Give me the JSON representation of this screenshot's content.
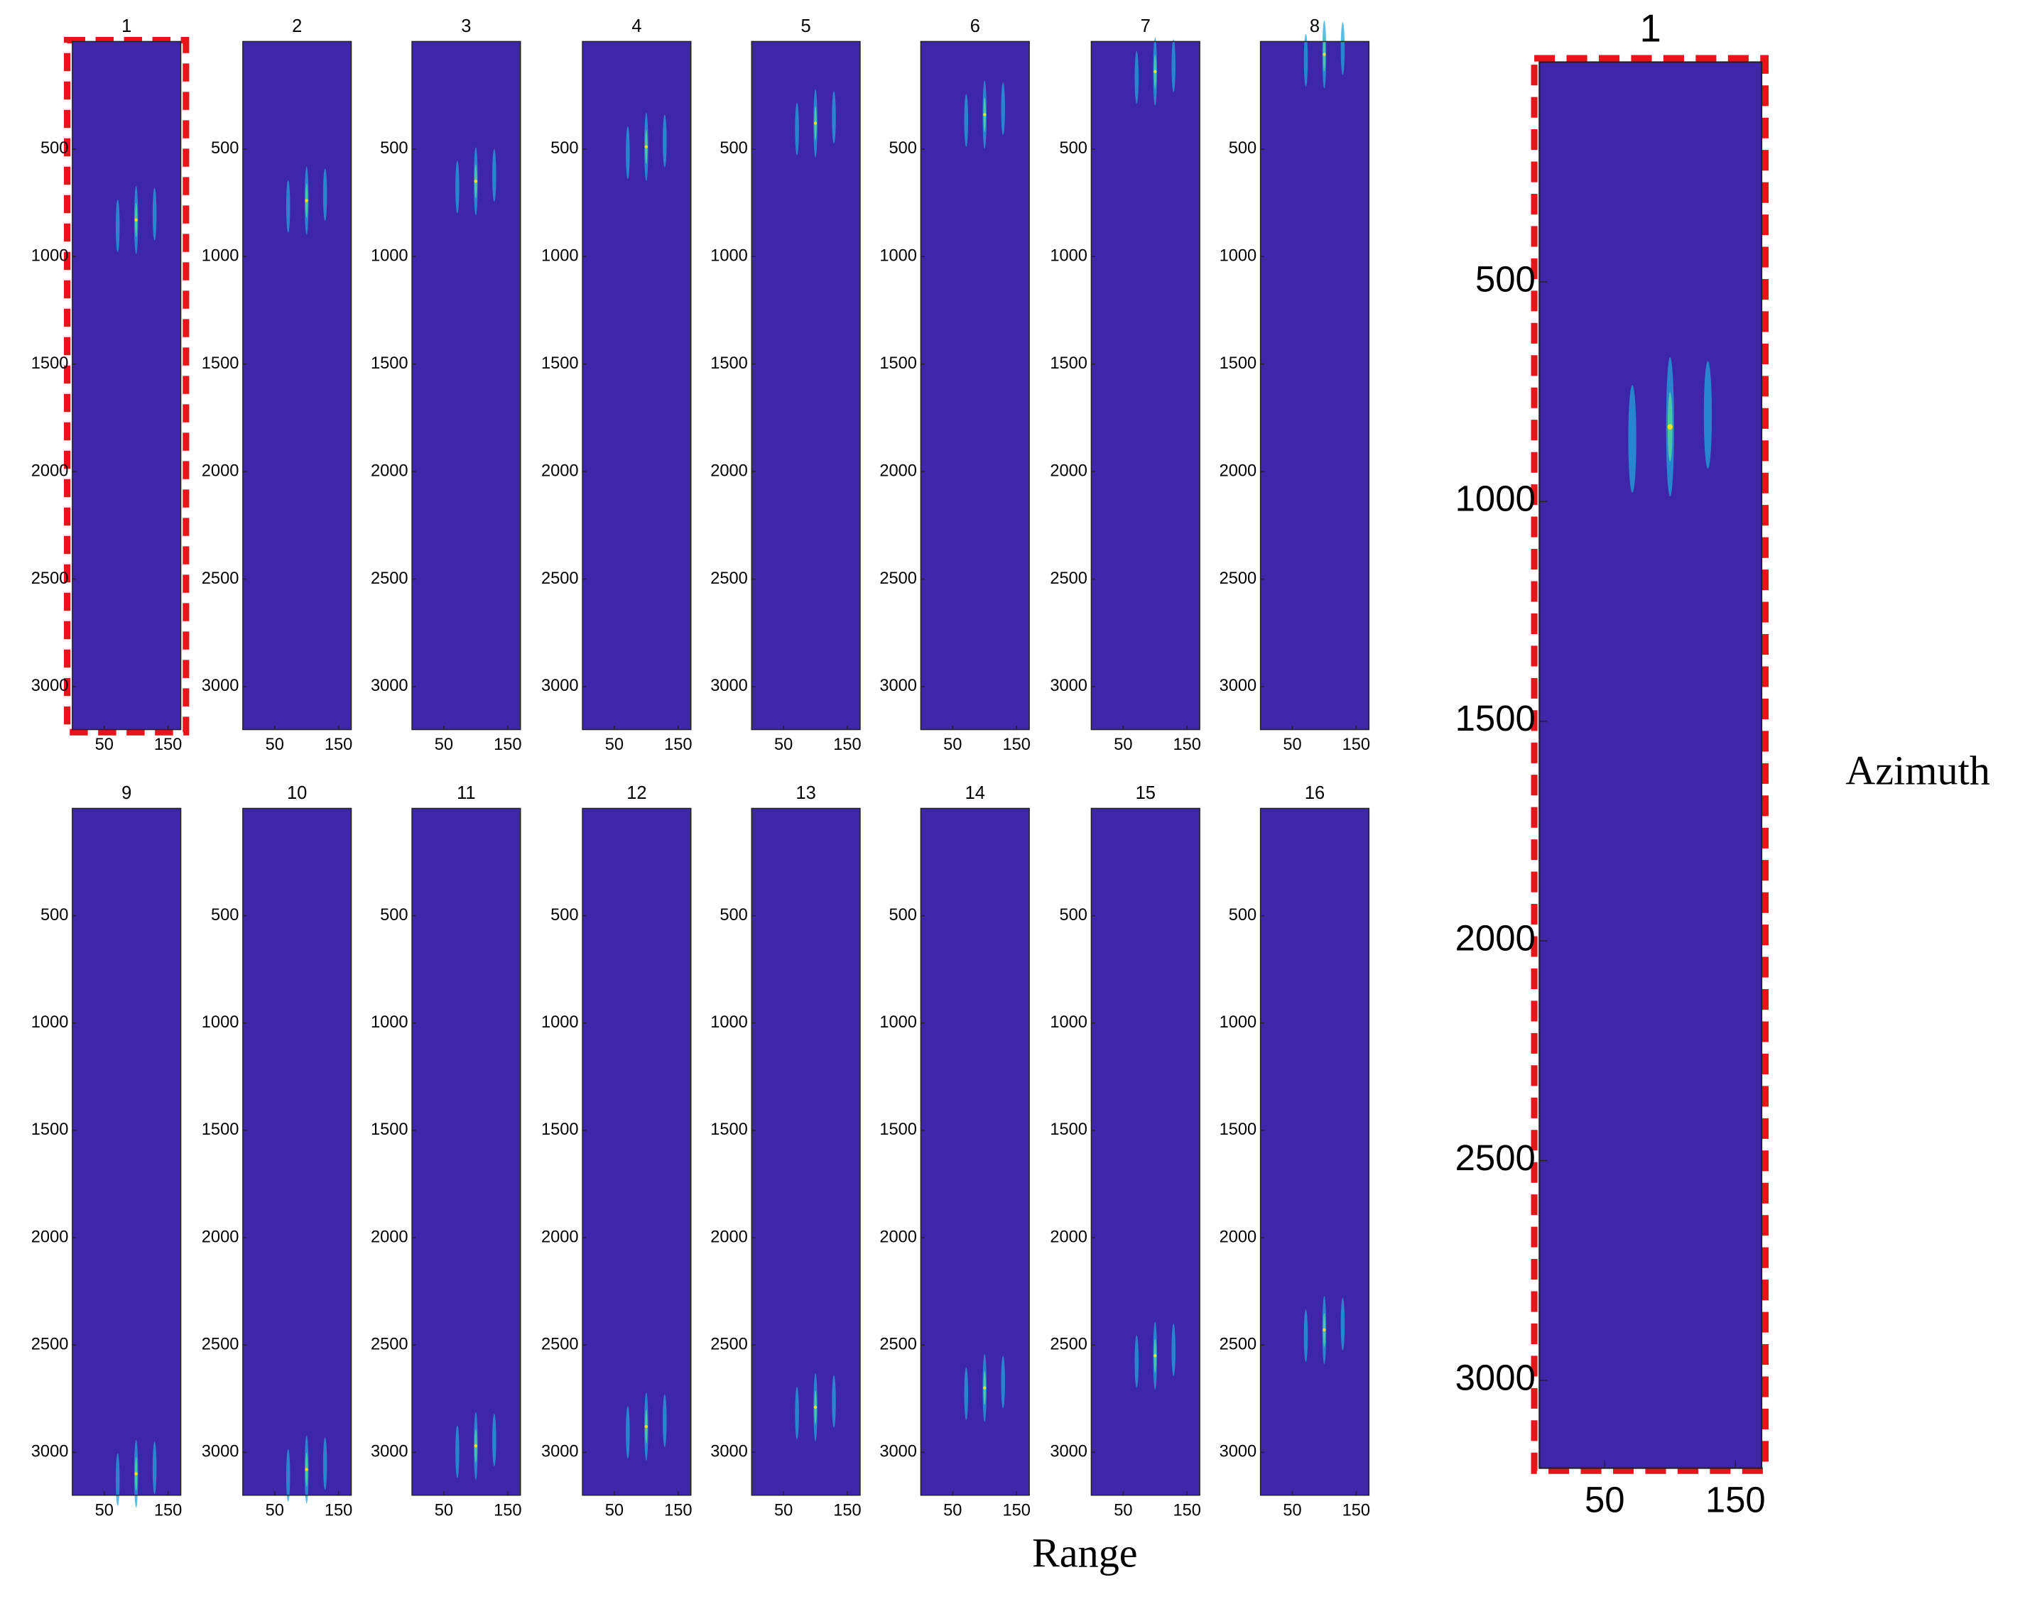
{
  "x_label": "Range",
  "y_label": "Azimuth",
  "chart_data": [
    {
      "type": "image",
      "title": "1",
      "color": "#3e26a8",
      "xlim": [
        0,
        170
      ],
      "ylim": [
        0,
        3200
      ],
      "y_reversed": true,
      "xticks": [
        50,
        150
      ],
      "yticks": [
        500,
        1000,
        1500,
        2000,
        2500,
        3000
      ],
      "peak_x": 100,
      "peak_y": 830
    },
    {
      "type": "image",
      "title": "2",
      "color": "#3e26a8",
      "xlim": [
        0,
        170
      ],
      "ylim": [
        0,
        3200
      ],
      "y_reversed": true,
      "xticks": [
        50,
        150
      ],
      "yticks": [
        500,
        1000,
        1500,
        2000,
        2500,
        3000
      ],
      "peak_x": 100,
      "peak_y": 740
    },
    {
      "type": "image",
      "title": "3",
      "color": "#3e26a8",
      "xlim": [
        0,
        170
      ],
      "ylim": [
        0,
        3200
      ],
      "y_reversed": true,
      "xticks": [
        50,
        150
      ],
      "yticks": [
        500,
        1000,
        1500,
        2000,
        2500,
        3000
      ],
      "peak_x": 100,
      "peak_y": 650
    },
    {
      "type": "image",
      "title": "4",
      "color": "#3e26a8",
      "xlim": [
        0,
        170
      ],
      "ylim": [
        0,
        3200
      ],
      "y_reversed": true,
      "xticks": [
        50,
        150
      ],
      "yticks": [
        500,
        1000,
        1500,
        2000,
        2500,
        3000
      ],
      "peak_x": 100,
      "peak_y": 490
    },
    {
      "type": "image",
      "title": "5",
      "color": "#3e26a8",
      "xlim": [
        0,
        170
      ],
      "ylim": [
        0,
        3200
      ],
      "y_reversed": true,
      "xticks": [
        50,
        150
      ],
      "yticks": [
        500,
        1000,
        1500,
        2000,
        2500,
        3000
      ],
      "peak_x": 100,
      "peak_y": 380
    },
    {
      "type": "image",
      "title": "6",
      "color": "#3e26a8",
      "xlim": [
        0,
        170
      ],
      "ylim": [
        0,
        3200
      ],
      "y_reversed": true,
      "xticks": [
        50,
        150
      ],
      "yticks": [
        500,
        1000,
        1500,
        2000,
        2500,
        3000
      ],
      "peak_x": 100,
      "peak_y": 340
    },
    {
      "type": "image",
      "title": "7",
      "color": "#3e26a8",
      "xlim": [
        0,
        170
      ],
      "ylim": [
        0,
        3200
      ],
      "y_reversed": true,
      "xticks": [
        50,
        150
      ],
      "yticks": [
        500,
        1000,
        1500,
        2000,
        2500,
        3000
      ],
      "peak_x": 100,
      "peak_y": 140
    },
    {
      "type": "image",
      "title": "8",
      "color": "#3e26a8",
      "xlim": [
        0,
        170
      ],
      "ylim": [
        0,
        3200
      ],
      "y_reversed": true,
      "xticks": [
        50,
        150
      ],
      "yticks": [
        500,
        1000,
        1500,
        2000,
        2500,
        3000
      ],
      "peak_x": 100,
      "peak_y": 60
    },
    {
      "type": "image",
      "title": "9",
      "color": "#3e26a8",
      "xlim": [
        0,
        170
      ],
      "ylim": [
        0,
        3200
      ],
      "y_reversed": true,
      "xticks": [
        50,
        150
      ],
      "yticks": [
        500,
        1000,
        1500,
        2000,
        2500,
        3000
      ],
      "peak_x": 100,
      "peak_y": 3100
    },
    {
      "type": "image",
      "title": "10",
      "color": "#3e26a8",
      "xlim": [
        0,
        170
      ],
      "ylim": [
        0,
        3200
      ],
      "y_reversed": true,
      "xticks": [
        50,
        150
      ],
      "yticks": [
        500,
        1000,
        1500,
        2000,
        2500,
        3000
      ],
      "peak_x": 100,
      "peak_y": 3080
    },
    {
      "type": "image",
      "title": "11",
      "color": "#3e26a8",
      "xlim": [
        0,
        170
      ],
      "ylim": [
        0,
        3200
      ],
      "y_reversed": true,
      "xticks": [
        50,
        150
      ],
      "yticks": [
        500,
        1000,
        1500,
        2000,
        2500,
        3000
      ],
      "peak_x": 100,
      "peak_y": 2970
    },
    {
      "type": "image",
      "title": "12",
      "color": "#3e26a8",
      "xlim": [
        0,
        170
      ],
      "ylim": [
        0,
        3200
      ],
      "y_reversed": true,
      "xticks": [
        50,
        150
      ],
      "yticks": [
        500,
        1000,
        1500,
        2000,
        2500,
        3000
      ],
      "peak_x": 100,
      "peak_y": 2880
    },
    {
      "type": "image",
      "title": "13",
      "color": "#3e26a8",
      "xlim": [
        0,
        170
      ],
      "ylim": [
        0,
        3200
      ],
      "y_reversed": true,
      "xticks": [
        50,
        150
      ],
      "yticks": [
        500,
        1000,
        1500,
        2000,
        2500,
        3000
      ],
      "peak_x": 100,
      "peak_y": 2790
    },
    {
      "type": "image",
      "title": "14",
      "color": "#3e26a8",
      "xlim": [
        0,
        170
      ],
      "ylim": [
        0,
        3200
      ],
      "y_reversed": true,
      "xticks": [
        50,
        150
      ],
      "yticks": [
        500,
        1000,
        1500,
        2000,
        2500,
        3000
      ],
      "peak_x": 100,
      "peak_y": 2700
    },
    {
      "type": "image",
      "title": "15",
      "color": "#3e26a8",
      "xlim": [
        0,
        170
      ],
      "ylim": [
        0,
        3200
      ],
      "y_reversed": true,
      "xticks": [
        50,
        150
      ],
      "yticks": [
        500,
        1000,
        1500,
        2000,
        2500,
        3000
      ],
      "peak_x": 100,
      "peak_y": 2550
    },
    {
      "type": "image",
      "title": "16",
      "color": "#3e26a8",
      "xlim": [
        0,
        170
      ],
      "ylim": [
        0,
        3200
      ],
      "y_reversed": true,
      "xticks": [
        50,
        150
      ],
      "yticks": [
        500,
        1000,
        1500,
        2000,
        2500,
        3000
      ],
      "peak_x": 100,
      "peak_y": 2430
    },
    {
      "type": "image",
      "title": "1",
      "color": "#3e26a8",
      "xlim": [
        0,
        170
      ],
      "ylim": [
        0,
        3200
      ],
      "y_reversed": true,
      "xticks": [
        50,
        150
      ],
      "yticks": [
        500,
        1000,
        1500,
        2000,
        2500,
        3000
      ],
      "peak_x": 100,
      "peak_y": 830
    }
  ]
}
